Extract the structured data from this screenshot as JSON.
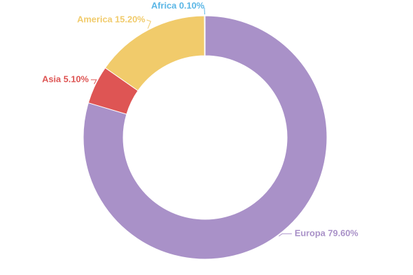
{
  "chart_data": {
    "type": "pie",
    "variant": "donut",
    "title": "",
    "legend": "none",
    "slices": [
      {
        "label": "Europa 79.60%",
        "name": "Europa",
        "value": 79.6,
        "color": "#a991c8"
      },
      {
        "label": "Asia 5.10%",
        "name": "Asia",
        "value": 5.1,
        "color": "#de5554"
      },
      {
        "label": "America 15.20%",
        "name": "America",
        "value": 15.2,
        "color": "#f1cb6b"
      },
      {
        "label": "Africa 0.10%",
        "name": "Africa",
        "value": 0.1,
        "color": "#5ab6e6"
      }
    ]
  }
}
